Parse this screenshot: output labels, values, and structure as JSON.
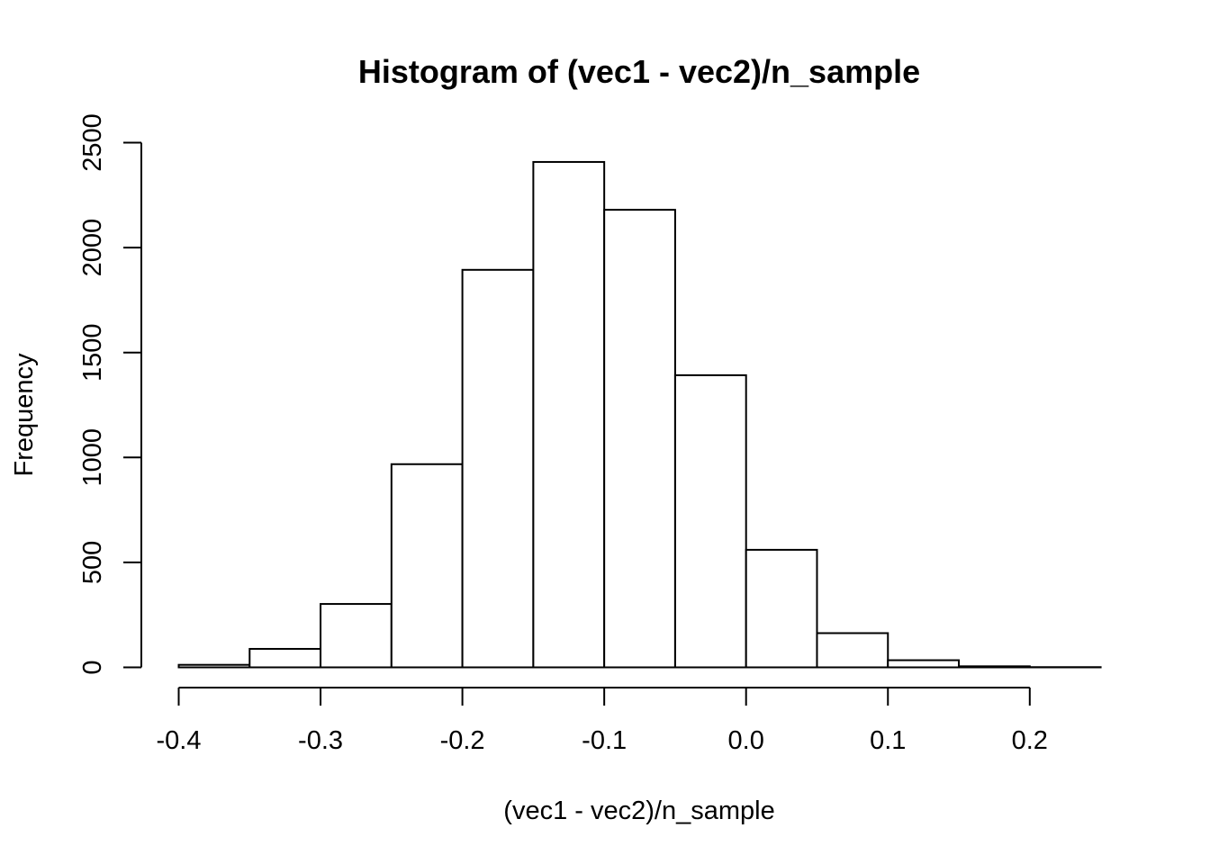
{
  "chart_data": {
    "type": "bar",
    "title": "Histogram of (vec1 - vec2)/n_sample",
    "xlabel": "(vec1 - vec2)/n_sample",
    "ylabel": "Frequency",
    "bin_edges": [
      -0.4,
      -0.35,
      -0.3,
      -0.25,
      -0.2,
      -0.15,
      -0.1,
      -0.05,
      0.0,
      0.05,
      0.1,
      0.15,
      0.2,
      0.25
    ],
    "values": [
      12,
      88,
      302,
      968,
      1894,
      2408,
      2180,
      1392,
      560,
      163,
      34,
      5,
      1
    ],
    "x_ticks": [
      "-0.4",
      "-0.3",
      "-0.2",
      "-0.1",
      "0.0",
      "0.1",
      "0.2"
    ],
    "x_tick_values": [
      -0.4,
      -0.3,
      -0.2,
      -0.1,
      0.0,
      0.1,
      0.2
    ],
    "y_ticks": [
      "0",
      "500",
      "1000",
      "1500",
      "2000",
      "2500"
    ],
    "y_tick_values": [
      0,
      500,
      1000,
      1500,
      2000,
      2500
    ],
    "xlim": [
      -0.4,
      0.25
    ],
    "ylim": [
      0,
      2500
    ],
    "grid": false,
    "colors": {
      "bar_fill": "#ffffff",
      "bar_stroke": "#000000"
    }
  }
}
